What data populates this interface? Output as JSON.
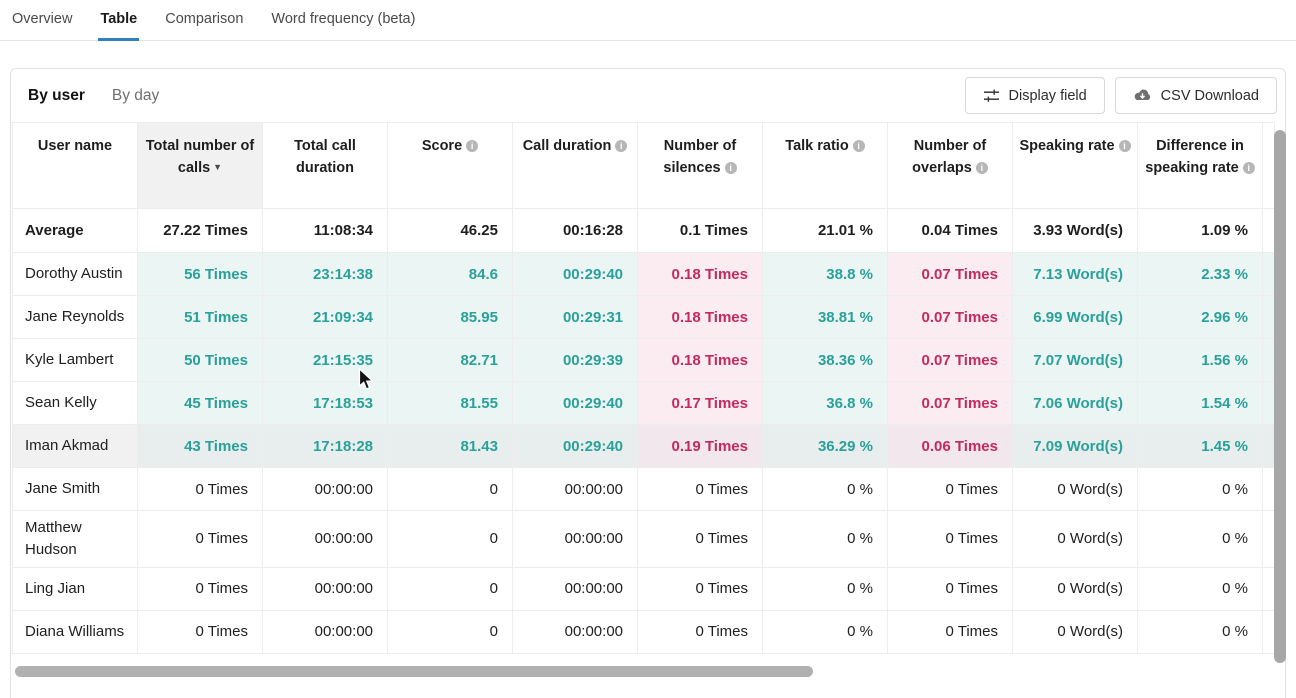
{
  "tabs": {
    "items": [
      {
        "label": "Overview"
      },
      {
        "label": "Table"
      },
      {
        "label": "Comparison"
      },
      {
        "label": "Word frequency (beta)"
      }
    ],
    "active": "Table"
  },
  "view_switch": {
    "by_user": "By user",
    "by_day": "By day",
    "active": "By user"
  },
  "toolbar": {
    "display_field": "Display field",
    "csv_download": "CSV Download"
  },
  "table": {
    "columns": [
      {
        "label": "User name",
        "info": false,
        "sorted": false
      },
      {
        "label": "Total number of calls",
        "info": false,
        "sorted": true,
        "sort_dir": "desc"
      },
      {
        "label": "Total call duration",
        "info": false,
        "sorted": false
      },
      {
        "label": "Score",
        "info": true,
        "sorted": false
      },
      {
        "label": "Call duration",
        "info": true,
        "sorted": false
      },
      {
        "label": "Number of silences",
        "info": true,
        "sorted": false
      },
      {
        "label": "Talk ratio",
        "info": true,
        "sorted": false
      },
      {
        "label": "Number of overlaps",
        "info": true,
        "sorted": false
      },
      {
        "label": "Speaking rate",
        "info": true,
        "sorted": false
      },
      {
        "label": "Difference in speaking rate",
        "info": true,
        "sorted": false
      }
    ],
    "average_row": {
      "name": "Average",
      "cells": [
        "27.22 Times",
        "11:08:34",
        "46.25",
        "00:16:28",
        "0.1 Times",
        "21.01 %",
        "0.04 Times",
        "3.93 Word(s)",
        "1.09 %"
      ]
    },
    "rows": [
      {
        "name": "Dorothy Austin",
        "hover": false,
        "cells": [
          {
            "v": "56 Times",
            "t": "teal"
          },
          {
            "v": "23:14:38",
            "t": "teal"
          },
          {
            "v": "84.6",
            "t": "teal"
          },
          {
            "v": "00:29:40",
            "t": "teal"
          },
          {
            "v": "0.18 Times",
            "t": "pink"
          },
          {
            "v": "38.8 %",
            "t": "teal"
          },
          {
            "v": "0.07 Times",
            "t": "pink"
          },
          {
            "v": "7.13 Word(s)",
            "t": "teal"
          },
          {
            "v": "2.33 %",
            "t": "teal"
          }
        ]
      },
      {
        "name": "Jane Reynolds",
        "hover": false,
        "cells": [
          {
            "v": "51 Times",
            "t": "teal"
          },
          {
            "v": "21:09:34",
            "t": "teal"
          },
          {
            "v": "85.95",
            "t": "teal"
          },
          {
            "v": "00:29:31",
            "t": "teal"
          },
          {
            "v": "0.18 Times",
            "t": "pink"
          },
          {
            "v": "38.81 %",
            "t": "teal"
          },
          {
            "v": "0.07 Times",
            "t": "pink"
          },
          {
            "v": "6.99 Word(s)",
            "t": "teal"
          },
          {
            "v": "2.96 %",
            "t": "teal"
          }
        ]
      },
      {
        "name": "Kyle Lambert",
        "hover": false,
        "cells": [
          {
            "v": "50 Times",
            "t": "teal"
          },
          {
            "v": "21:15:35",
            "t": "teal"
          },
          {
            "v": "82.71",
            "t": "teal"
          },
          {
            "v": "00:29:39",
            "t": "teal"
          },
          {
            "v": "0.18 Times",
            "t": "pink"
          },
          {
            "v": "38.36 %",
            "t": "teal"
          },
          {
            "v": "0.07 Times",
            "t": "pink"
          },
          {
            "v": "7.07 Word(s)",
            "t": "teal"
          },
          {
            "v": "1.56 %",
            "t": "teal"
          }
        ]
      },
      {
        "name": "Sean Kelly",
        "hover": false,
        "cells": [
          {
            "v": "45 Times",
            "t": "teal"
          },
          {
            "v": "17:18:53",
            "t": "teal"
          },
          {
            "v": "81.55",
            "t": "teal"
          },
          {
            "v": "00:29:40",
            "t": "teal"
          },
          {
            "v": "0.17 Times",
            "t": "pink"
          },
          {
            "v": "36.8 %",
            "t": "teal"
          },
          {
            "v": "0.07 Times",
            "t": "pink"
          },
          {
            "v": "7.06 Word(s)",
            "t": "teal"
          },
          {
            "v": "1.54 %",
            "t": "teal"
          }
        ]
      },
      {
        "name": "Iman Akmad",
        "hover": true,
        "cells": [
          {
            "v": "43 Times",
            "t": "teal"
          },
          {
            "v": "17:18:28",
            "t": "teal"
          },
          {
            "v": "81.43",
            "t": "teal"
          },
          {
            "v": "00:29:40",
            "t": "teal"
          },
          {
            "v": "0.19 Times",
            "t": "pink"
          },
          {
            "v": "36.29 %",
            "t": "teal"
          },
          {
            "v": "0.06 Times",
            "t": "pink"
          },
          {
            "v": "7.09 Word(s)",
            "t": "teal"
          },
          {
            "v": "1.45 %",
            "t": "teal"
          }
        ]
      },
      {
        "name": "Jane Smith",
        "hover": false,
        "cells": [
          {
            "v": "0 Times",
            "t": "plain"
          },
          {
            "v": "00:00:00",
            "t": "plain"
          },
          {
            "v": "0",
            "t": "plain"
          },
          {
            "v": "00:00:00",
            "t": "plain"
          },
          {
            "v": "0 Times",
            "t": "plain"
          },
          {
            "v": "0 %",
            "t": "plain"
          },
          {
            "v": "0 Times",
            "t": "plain"
          },
          {
            "v": "0 Word(s)",
            "t": "plain"
          },
          {
            "v": "0 %",
            "t": "plain"
          }
        ]
      },
      {
        "name": "Matthew Hudson",
        "hover": false,
        "cells": [
          {
            "v": "0 Times",
            "t": "plain"
          },
          {
            "v": "00:00:00",
            "t": "plain"
          },
          {
            "v": "0",
            "t": "plain"
          },
          {
            "v": "00:00:00",
            "t": "plain"
          },
          {
            "v": "0 Times",
            "t": "plain"
          },
          {
            "v": "0 %",
            "t": "plain"
          },
          {
            "v": "0 Times",
            "t": "plain"
          },
          {
            "v": "0 Word(s)",
            "t": "plain"
          },
          {
            "v": "0 %",
            "t": "plain"
          }
        ]
      },
      {
        "name": "Ling Jian",
        "hover": false,
        "cells": [
          {
            "v": "0 Times",
            "t": "plain"
          },
          {
            "v": "00:00:00",
            "t": "plain"
          },
          {
            "v": "0",
            "t": "plain"
          },
          {
            "v": "00:00:00",
            "t": "plain"
          },
          {
            "v": "0 Times",
            "t": "plain"
          },
          {
            "v": "0 %",
            "t": "plain"
          },
          {
            "v": "0 Times",
            "t": "plain"
          },
          {
            "v": "0 Word(s)",
            "t": "plain"
          },
          {
            "v": "0 %",
            "t": "plain"
          }
        ]
      },
      {
        "name": "Diana Williams",
        "hover": false,
        "cells": [
          {
            "v": "0 Times",
            "t": "plain"
          },
          {
            "v": "00:00:00",
            "t": "plain"
          },
          {
            "v": "0",
            "t": "plain"
          },
          {
            "v": "00:00:00",
            "t": "plain"
          },
          {
            "v": "0 Times",
            "t": "plain"
          },
          {
            "v": "0 %",
            "t": "plain"
          },
          {
            "v": "0 Times",
            "t": "plain"
          },
          {
            "v": "0 Word(s)",
            "t": "plain"
          },
          {
            "v": "0 %",
            "t": "plain"
          }
        ]
      }
    ]
  },
  "colors": {
    "teal": "#2aa198",
    "teal_bg": "#ebf5f4",
    "pink": "#c42a5f",
    "pink_bg": "#fbecf1",
    "tab_underline": "#3181bf"
  }
}
